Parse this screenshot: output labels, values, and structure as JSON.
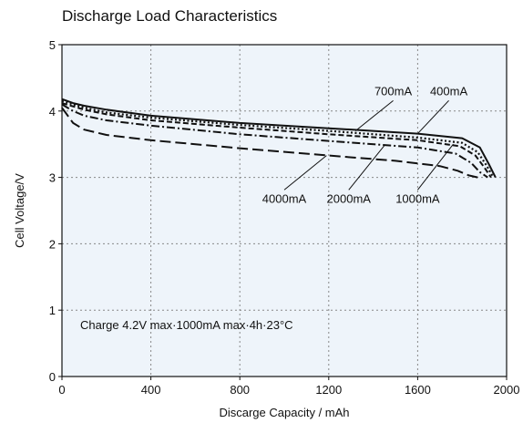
{
  "chart_data": {
    "type": "line",
    "title": "Discharge Load Characteristics",
    "xlabel": "Discarge Capacity / mAh",
    "ylabel": "Cell Voltage/V",
    "xlim": [
      0,
      2000
    ],
    "ylim": [
      0,
      5
    ],
    "xticks": [
      "0",
      "400",
      "800",
      "1200",
      "1600",
      "2000"
    ],
    "yticks": [
      "0",
      "1",
      "2",
      "3",
      "4",
      "5"
    ],
    "xtick_values": [
      0,
      400,
      800,
      1200,
      1600,
      2000
    ],
    "ytick_values": [
      0,
      1,
      2,
      3,
      4,
      5
    ],
    "grid": true,
    "plot_background": "#eef4fa",
    "annotation": "Charge 4.2V max·1000mA max·4h·23°C",
    "series": [
      {
        "name": "400mA",
        "style": "solid",
        "color": "#111111",
        "x": [
          0,
          50,
          100,
          200,
          400,
          800,
          1200,
          1600,
          1800,
          1880,
          1920,
          1950
        ],
        "y": [
          4.18,
          4.12,
          4.08,
          4.02,
          3.93,
          3.82,
          3.74,
          3.66,
          3.59,
          3.45,
          3.2,
          3.0
        ]
      },
      {
        "name": "700mA",
        "style": "dotted",
        "color": "#111111",
        "x": [
          0,
          50,
          100,
          200,
          400,
          800,
          1200,
          1600,
          1800,
          1870,
          1910,
          1940
        ],
        "y": [
          4.15,
          4.1,
          4.05,
          3.98,
          3.9,
          3.79,
          3.7,
          3.6,
          3.52,
          3.38,
          3.18,
          3.0
        ]
      },
      {
        "name": "1000mA",
        "style": "dashed",
        "color": "#111111",
        "x": [
          0,
          50,
          100,
          200,
          400,
          800,
          1200,
          1600,
          1790,
          1860,
          1900,
          1930
        ],
        "y": [
          4.12,
          4.07,
          4.02,
          3.95,
          3.86,
          3.75,
          3.65,
          3.56,
          3.47,
          3.33,
          3.15,
          3.0
        ]
      },
      {
        "name": "2000mA",
        "style": "dashdot",
        "color": "#111111",
        "x": [
          0,
          50,
          100,
          200,
          400,
          800,
          1200,
          1600,
          1770,
          1840,
          1880,
          1915
        ],
        "y": [
          4.1,
          4.0,
          3.93,
          3.86,
          3.78,
          3.65,
          3.55,
          3.45,
          3.36,
          3.22,
          3.08,
          3.0
        ]
      },
      {
        "name": "4000mA",
        "style": "longdash",
        "color": "#111111",
        "x": [
          0,
          50,
          100,
          200,
          400,
          800,
          1200,
          1500,
          1700,
          1780,
          1830,
          1870
        ],
        "y": [
          4.05,
          3.82,
          3.72,
          3.64,
          3.56,
          3.44,
          3.33,
          3.25,
          3.17,
          3.1,
          3.03,
          3.0
        ]
      }
    ],
    "callouts": [
      {
        "label": "700mA",
        "point": [
          1320,
          3.7
        ],
        "label_at": [
          1490,
          4.24
        ]
      },
      {
        "label": "400mA",
        "point": [
          1600,
          3.66
        ],
        "label_at": [
          1740,
          4.24
        ]
      },
      {
        "label": "4000mA",
        "point": [
          1190,
          3.33
        ],
        "label_at": [
          1000,
          2.62
        ]
      },
      {
        "label": "2000mA",
        "point": [
          1450,
          3.48
        ],
        "label_at": [
          1290,
          2.62
        ]
      },
      {
        "label": "1000mA",
        "point": [
          1760,
          3.5
        ],
        "label_at": [
          1600,
          2.62
        ]
      }
    ]
  }
}
